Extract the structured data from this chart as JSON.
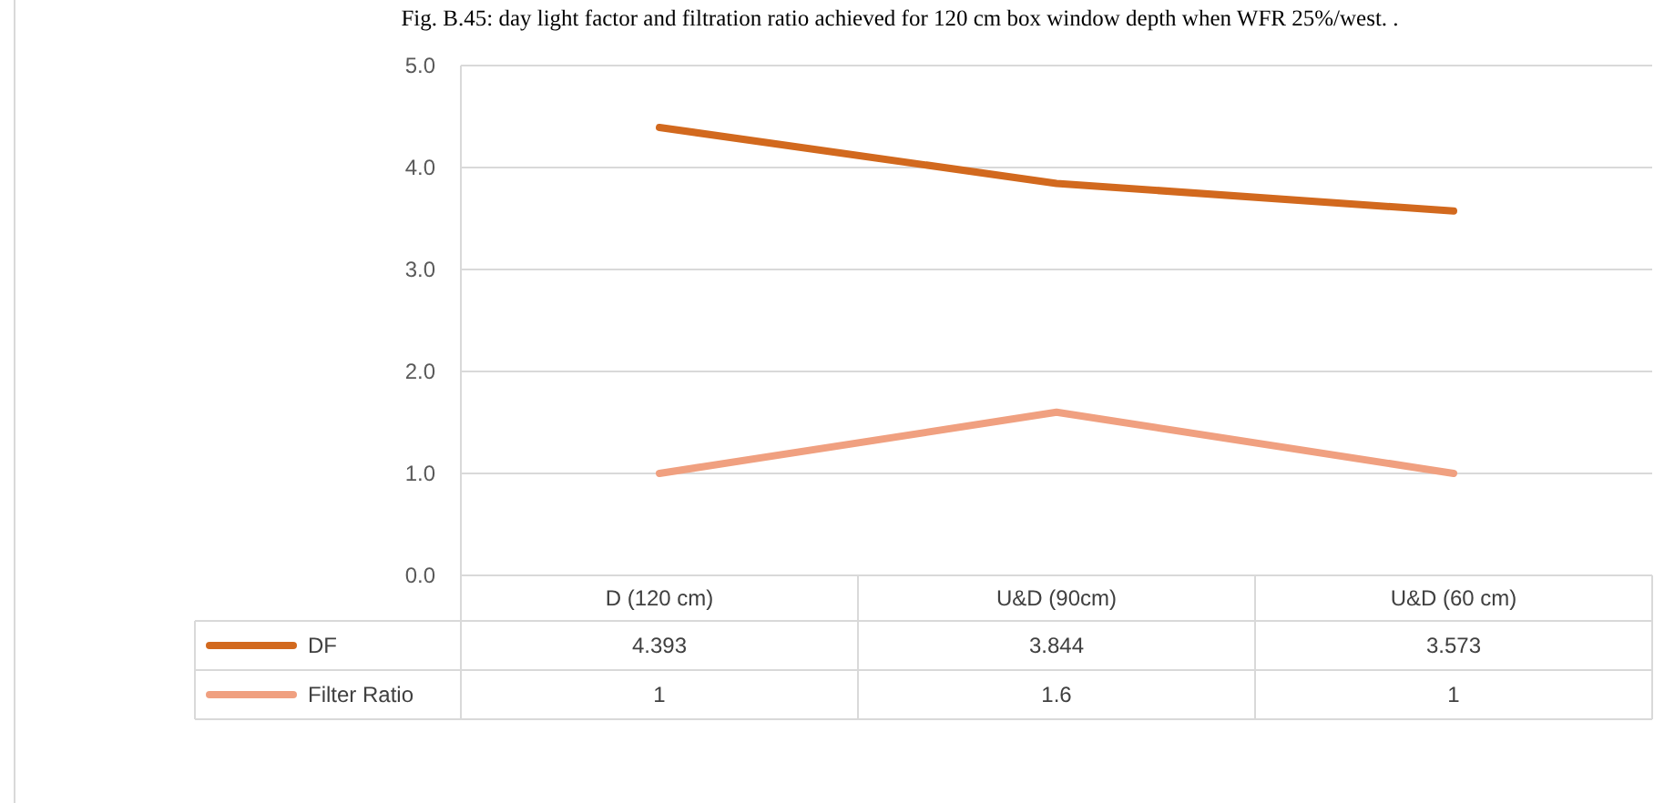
{
  "chart_data": {
    "type": "line",
    "title": "Fig. B.45: day light factor and filtration ratio achieved for 120 cm box window depth when WFR 25%/west. .",
    "categories": [
      "D (120 cm)",
      "U&D (90cm)",
      "U&D (60 cm)"
    ],
    "series": [
      {
        "name": "DF",
        "color": "#d2691e",
        "values": [
          4.393,
          3.844,
          3.573
        ]
      },
      {
        "name": "Filter Ratio",
        "color": "#f0a080",
        "values": [
          1,
          1.6,
          1
        ]
      }
    ],
    "ylim": [
      0,
      5
    ],
    "yticks": [
      {
        "value": 0,
        "label": "0.0"
      },
      {
        "value": 1,
        "label": "1.0"
      },
      {
        "value": 2,
        "label": "2.0"
      },
      {
        "value": 3,
        "label": "3.0"
      },
      {
        "value": 4,
        "label": "4.0"
      },
      {
        "value": 5,
        "label": "5.0"
      }
    ],
    "grid": "y",
    "legend": "bottom",
    "data_labels": true,
    "line_style": "solid"
  }
}
